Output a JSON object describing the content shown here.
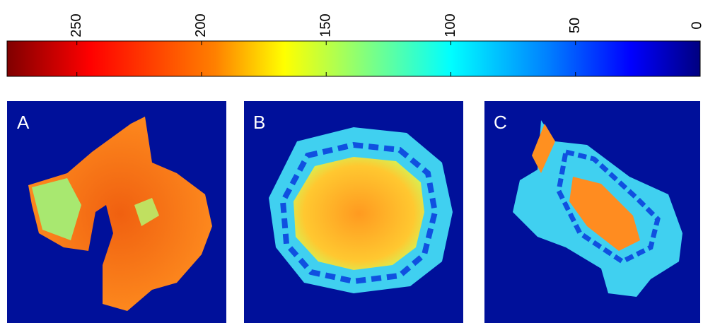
{
  "chart_data": {
    "type": "colorbar",
    "xlim": [
      278,
      0
    ],
    "xticks": [
      250,
      200,
      150,
      100,
      50,
      0
    ],
    "panels": [
      "A",
      "B",
      "C"
    ]
  }
}
